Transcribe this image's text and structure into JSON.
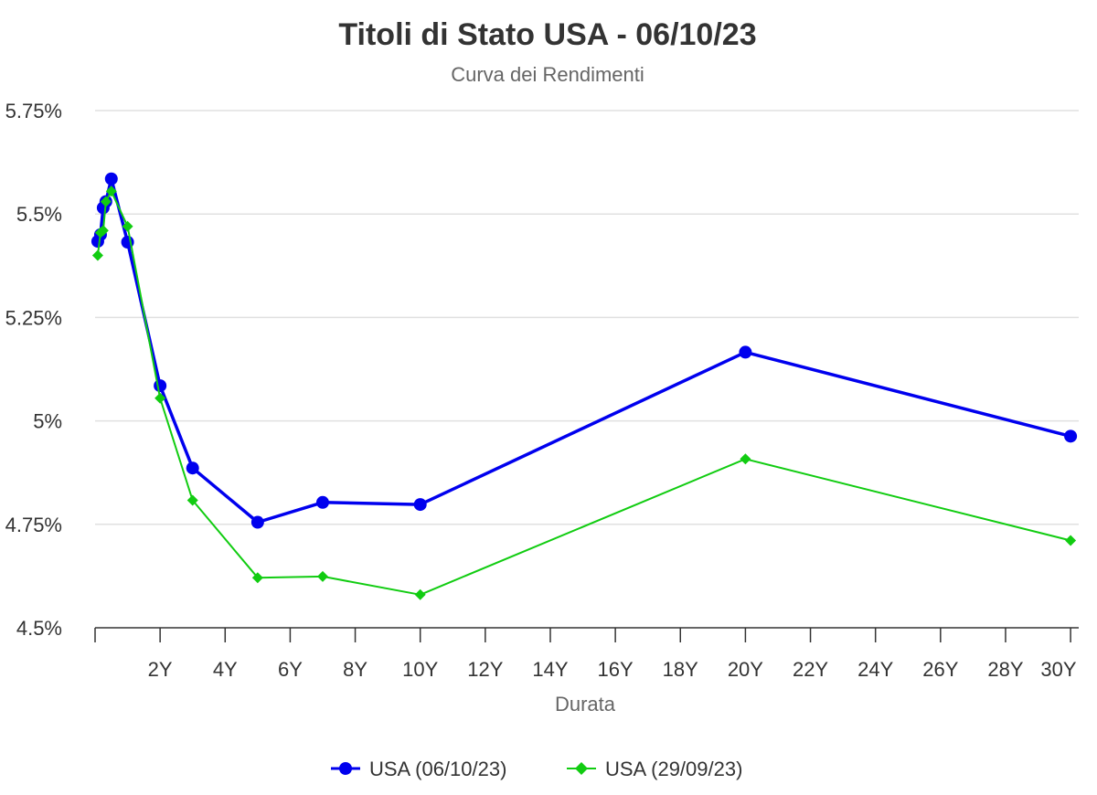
{
  "chart_data": {
    "type": "line",
    "title": "Titoli di Stato USA - 06/10/23",
    "subtitle": "Curva dei Rendimenti",
    "xlabel": "Durata",
    "ylabel": "",
    "xlim": [
      0,
      30.25
    ],
    "ylim": [
      4.5,
      5.75
    ],
    "x_ticks": [
      2,
      4,
      6,
      8,
      10,
      12,
      14,
      16,
      18,
      20,
      22,
      24,
      26,
      28,
      30
    ],
    "x_tick_labels": [
      "2Y",
      "4Y",
      "6Y",
      "8Y",
      "10Y",
      "12Y",
      "14Y",
      "16Y",
      "18Y",
      "20Y",
      "22Y",
      "24Y",
      "26Y",
      "28Y",
      "30Y"
    ],
    "y_ticks": [
      4.5,
      4.75,
      5,
      5.25,
      5.5,
      5.75
    ],
    "y_tick_labels": [
      "4.5%",
      "4.75%",
      "5%",
      "5.25%",
      "5.5%",
      "5.75%"
    ],
    "grid": "horizontal",
    "legend_position": "bottom-center",
    "series": [
      {
        "name": "USA (06/10/23)",
        "color": "#0000ee",
        "marker": "circle",
        "x": [
          0.083,
          0.167,
          0.25,
          0.333,
          0.5,
          1,
          2,
          3,
          5,
          7,
          10,
          20,
          30
        ],
        "y": [
          5.434,
          5.45,
          5.515,
          5.53,
          5.585,
          5.432,
          5.085,
          4.886,
          4.755,
          4.803,
          4.798,
          5.166,
          4.963
        ]
      },
      {
        "name": "USA (29/09/23)",
        "color": "#11cc11",
        "marker": "diamond",
        "x": [
          0.083,
          0.167,
          0.25,
          0.333,
          0.5,
          1,
          2,
          3,
          5,
          7,
          10,
          20,
          30
        ],
        "y": [
          5.4,
          5.455,
          5.46,
          5.53,
          5.555,
          5.47,
          5.055,
          4.808,
          4.621,
          4.624,
          4.58,
          4.908,
          4.711
        ]
      }
    ]
  }
}
